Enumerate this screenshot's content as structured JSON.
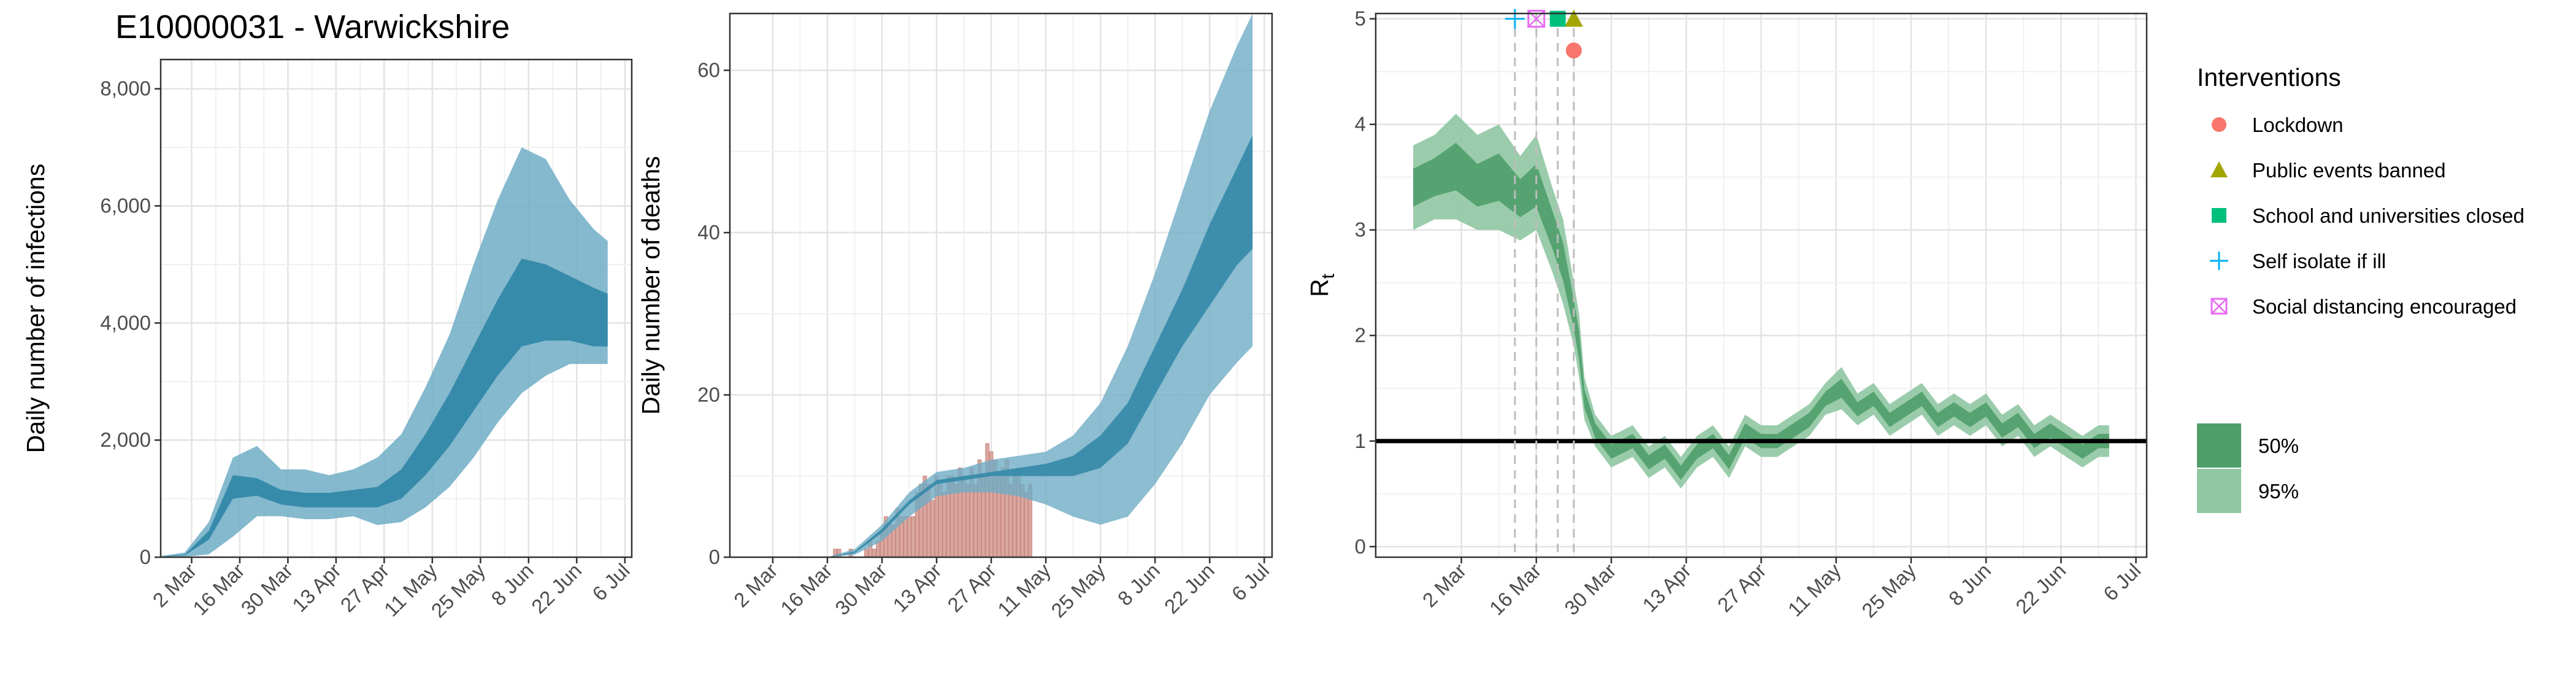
{
  "page_title": "E10000031 - Warwickshire",
  "x_tick_labels": [
    "2 Mar",
    "16 Mar",
    "30 Mar",
    "13 Apr",
    "27 Apr",
    "11 May",
    "25 May",
    "8 Jun",
    "22 Jun",
    "6 Jul"
  ],
  "colors": {
    "infections_band_95": "#6fadc5",
    "infections_band_50": "#2f86a6",
    "infections_line": "#1f6f8b",
    "observed_deaths_bar": "#d8a7a0",
    "rt_band_95": "#8fc7a2",
    "rt_band_50": "#4f9e6a",
    "rt_reference_line": "#000000",
    "intervention_vline": "#bdbdbd",
    "lockdown": "#f8766d",
    "public_events_banned": "#a3a500",
    "schools_closed": "#00bf7d",
    "self_isolate": "#00b0f6",
    "social_distancing": "#e76bf3"
  },
  "chart_data": [
    {
      "type": "area",
      "ylabel": "Daily number of infections",
      "ylim": [
        0,
        8500
      ],
      "y_ticks": [
        0,
        2000,
        4000,
        6000,
        8000
      ],
      "y_tick_labels": [
        "0",
        "2,000",
        "4,000",
        "6,000",
        "8,000"
      ],
      "x": [
        "22 Feb",
        "29 Feb",
        "7 Mar",
        "14 Mar",
        "21 Mar",
        "28 Mar",
        "4 Apr",
        "11 Apr",
        "18 Apr",
        "25 Apr",
        "2 May",
        "9 May",
        "16 May",
        "23 May",
        "30 May",
        "6 Jun",
        "13 Jun",
        "20 Jun",
        "27 Jun",
        "1 Jul"
      ],
      "series": [
        {
          "band": "95%",
          "lower": [
            0,
            5,
            50,
            350,
            700,
            700,
            650,
            650,
            700,
            550,
            600,
            850,
            1200,
            1700,
            2300,
            2800,
            3100,
            3300,
            3300,
            3300
          ],
          "upper": [
            20,
            80,
            600,
            1700,
            1900,
            1500,
            1500,
            1400,
            1500,
            1700,
            2100,
            2900,
            3800,
            5000,
            6100,
            7000,
            6800,
            6100,
            5600,
            5400
          ]
        },
        {
          "band": "50%",
          "lower": [
            5,
            30,
            300,
            1000,
            1050,
            900,
            850,
            850,
            850,
            850,
            1000,
            1400,
            1900,
            2500,
            3100,
            3600,
            3700,
            3700,
            3600,
            3600
          ],
          "upper": [
            10,
            45,
            450,
            1400,
            1350,
            1150,
            1100,
            1100,
            1150,
            1200,
            1500,
            2100,
            2800,
            3600,
            4400,
            5100,
            5000,
            4800,
            4600,
            4500
          ]
        }
      ]
    },
    {
      "type": "area",
      "ylabel": "Daily number of deaths",
      "ylim": [
        0,
        67
      ],
      "y_ticks": [
        0,
        20,
        40,
        60
      ],
      "y_tick_labels": [
        "0",
        "20",
        "40",
        "60"
      ],
      "x": [
        "16 Mar",
        "23 Mar",
        "30 Mar",
        "6 Apr",
        "13 Apr",
        "20 Apr",
        "27 Apr",
        "4 May",
        "11 May",
        "18 May",
        "25 May",
        "1 Jun",
        "8 Jun",
        "15 Jun",
        "22 Jun",
        "29 Jun",
        "3 Jul"
      ],
      "series": [
        {
          "band": "95%",
          "lower": [
            0,
            0.3,
            2,
            5,
            7.5,
            8,
            8,
            7.5,
            6.5,
            5,
            4,
            5,
            9,
            14,
            20,
            24,
            26
          ],
          "upper": [
            0,
            1,
            4,
            8,
            10.5,
            11,
            12,
            12.5,
            13,
            15,
            19,
            26,
            35,
            45,
            55,
            63,
            67
          ]
        },
        {
          "band": "50%",
          "lower": [
            0,
            0.5,
            3,
            6.5,
            9,
            9.5,
            10,
            10,
            10,
            10,
            11,
            14,
            20,
            26,
            31,
            36,
            38
          ],
          "upper": [
            0,
            0.7,
            3.5,
            7,
            9.5,
            10,
            10.5,
            11,
            11.5,
            12.5,
            15,
            19,
            26,
            33,
            41,
            48,
            52
          ]
        }
      ],
      "observed_deaths": {
        "x": [
          "18 Mar",
          "19 Mar",
          "20 Mar",
          "21 Mar",
          "22 Mar",
          "23 Mar",
          "24 Mar",
          "25 Mar",
          "26 Mar",
          "27 Mar",
          "28 Mar",
          "29 Mar",
          "30 Mar",
          "31 Mar",
          "1 Apr",
          "2 Apr",
          "3 Apr",
          "4 Apr",
          "5 Apr",
          "6 Apr",
          "7 Apr",
          "8 Apr",
          "9 Apr",
          "10 Apr",
          "11 Apr",
          "12 Apr",
          "13 Apr",
          "14 Apr",
          "15 Apr",
          "16 Apr",
          "17 Apr",
          "18 Apr",
          "19 Apr",
          "20 Apr",
          "21 Apr",
          "22 Apr",
          "23 Apr",
          "24 Apr",
          "25 Apr",
          "26 Apr",
          "27 Apr",
          "28 Apr",
          "29 Apr",
          "30 Apr",
          "1 May",
          "2 May",
          "3 May",
          "4 May",
          "5 May",
          "6 May",
          "7 May"
        ],
        "values": [
          1,
          1,
          0,
          0,
          1,
          0,
          0,
          0,
          1,
          2,
          1,
          2,
          3,
          5,
          4,
          4,
          6,
          5,
          5,
          5,
          5,
          8,
          9,
          10,
          9,
          7,
          10,
          9,
          8,
          10,
          10,
          9,
          11,
          10,
          9,
          11,
          9,
          12,
          10,
          14,
          13,
          12,
          10,
          11,
          12,
          9,
          10,
          11,
          9,
          8,
          9
        ]
      }
    },
    {
      "type": "area",
      "ylabel": "R",
      "ylabel_subscript": "t",
      "ylim": [
        -0.1,
        5.05
      ],
      "y_ticks": [
        0,
        1,
        2,
        3,
        4,
        5
      ],
      "y_tick_labels": [
        "0",
        "1",
        "2",
        "3",
        "4",
        "5"
      ],
      "reference_line": 1,
      "x": [
        "22 Feb",
        "26 Feb",
        "1 Mar",
        "5 Mar",
        "9 Mar",
        "13 Mar",
        "16 Mar",
        "19 Mar",
        "21 Mar",
        "23 Mar",
        "24 Mar",
        "25 Mar",
        "27 Mar",
        "30 Mar",
        "3 Apr",
        "6 Apr",
        "9 Apr",
        "12 Apr",
        "15 Apr",
        "18 Apr",
        "21 Apr",
        "24 Apr",
        "27 Apr",
        "30 Apr",
        "3 May",
        "6 May",
        "9 May",
        "12 May",
        "15 May",
        "18 May",
        "21 May",
        "24 May",
        "27 May",
        "30 May",
        "2 Jun",
        "5 Jun",
        "8 Jun",
        "11 Jun",
        "14 Jun",
        "17 Jun",
        "20 Jun",
        "23 Jun",
        "26 Jun",
        "29 Jun",
        "1 Jul"
      ],
      "series": [
        {
          "band": "50%",
          "values": [
            3.4,
            3.5,
            3.6,
            3.4,
            3.5,
            3.3,
            3.4,
            3.0,
            2.7,
            2.2,
            1.9,
            1.4,
            1.1,
            0.9,
            1.0,
            0.8,
            0.9,
            0.7,
            0.9,
            1.0,
            0.8,
            1.1,
            1.0,
            1.0,
            1.1,
            1.2,
            1.4,
            1.5,
            1.3,
            1.4,
            1.2,
            1.3,
            1.4,
            1.2,
            1.3,
            1.2,
            1.3,
            1.1,
            1.2,
            1.0,
            1.1,
            1.0,
            0.9,
            1.0,
            1.0
          ]
        },
        {
          "band": "95%",
          "lower": [
            3.0,
            3.1,
            3.1,
            3.0,
            3.0,
            2.9,
            3.0,
            2.6,
            2.3,
            1.9,
            1.6,
            1.2,
            0.95,
            0.75,
            0.85,
            0.65,
            0.75,
            0.55,
            0.75,
            0.85,
            0.65,
            0.95,
            0.85,
            0.85,
            0.95,
            1.05,
            1.25,
            1.3,
            1.15,
            1.25,
            1.05,
            1.15,
            1.25,
            1.05,
            1.15,
            1.05,
            1.15,
            0.95,
            1.05,
            0.85,
            0.95,
            0.85,
            0.75,
            0.85,
            0.85
          ],
          "upper": [
            3.8,
            3.9,
            4.1,
            3.9,
            4.0,
            3.7,
            3.9,
            3.4,
            3.1,
            2.5,
            2.2,
            1.6,
            1.25,
            1.05,
            1.15,
            0.95,
            1.05,
            0.85,
            1.05,
            1.15,
            0.95,
            1.25,
            1.15,
            1.15,
            1.25,
            1.35,
            1.55,
            1.7,
            1.45,
            1.55,
            1.35,
            1.45,
            1.55,
            1.35,
            1.45,
            1.35,
            1.45,
            1.25,
            1.35,
            1.15,
            1.25,
            1.15,
            1.05,
            1.15,
            1.15
          ]
        }
      ],
      "interventions": [
        {
          "label": "Lockdown",
          "date": "23 Mar",
          "y": 4.7,
          "symbol": "circle"
        },
        {
          "label": "Public events banned",
          "date": "23 Mar",
          "y": 5.0,
          "symbol": "triangle"
        },
        {
          "label": "School and universities closed",
          "date": "20 Mar",
          "y": 5.0,
          "symbol": "square"
        },
        {
          "label": "Self isolate if ill",
          "date": "12 Mar",
          "y": 5.0,
          "symbol": "plus"
        },
        {
          "label": "Social distancing encouraged",
          "date": "16 Mar",
          "y": 5.0,
          "symbol": "boxcross"
        }
      ],
      "legend": {
        "title": "Interventions",
        "items": [
          "Lockdown",
          "Public events banned",
          "School and universities closed",
          "Self isolate if ill",
          "Social distancing encouraged"
        ],
        "bands": [
          "50%",
          "95%"
        ]
      }
    }
  ]
}
